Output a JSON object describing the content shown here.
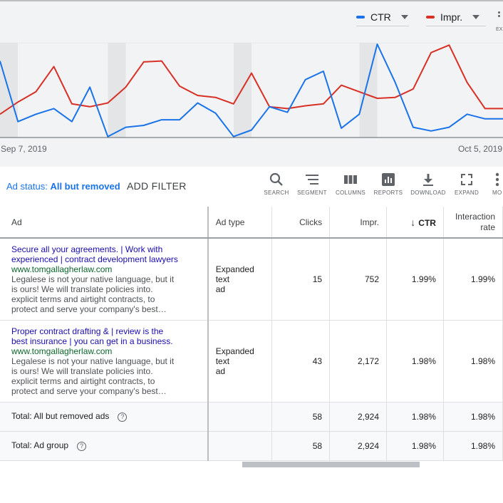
{
  "chart": {
    "legend": [
      {
        "label": "CTR",
        "color": "#1a73e8"
      },
      {
        "label": "Impr.",
        "color": "#d93025"
      }
    ],
    "overflow_label": "EX",
    "start_date": "Sep 7, 2019",
    "end_date": "Oct 5, 2019"
  },
  "chart_data": {
    "type": "line",
    "x": [
      "Sep 7, 2019",
      "Sep 8",
      "Sep 9",
      "Sep 10",
      "Sep 11",
      "Sep 12",
      "Sep 13",
      "Sep 14",
      "Sep 15",
      "Sep 16",
      "Sep 17",
      "Sep 18",
      "Sep 19",
      "Sep 20",
      "Sep 21",
      "Sep 22",
      "Sep 23",
      "Sep 24",
      "Sep 25",
      "Sep 26",
      "Sep 27",
      "Sep 28",
      "Sep 29",
      "Sep 30",
      "Oct 1",
      "Oct 2",
      "Oct 3",
      "Oct 4",
      "Oct 5, 2019"
    ],
    "series": [
      {
        "name": "CTR",
        "color": "#1a73e8",
        "values": [
          0.82,
          0.17,
          0.25,
          0.31,
          0.17,
          0.54,
          0.01,
          0.11,
          0.13,
          0.19,
          0.19,
          0.37,
          0.26,
          0.01,
          0.08,
          0.33,
          0.27,
          0.62,
          0.71,
          0.1,
          0.25,
          1.0,
          0.59,
          0.11,
          0.07,
          0.11,
          0.25,
          0.2,
          0.2
        ]
      },
      {
        "name": "Impr.",
        "color": "#d93025",
        "values": [
          0.25,
          0.38,
          0.49,
          0.76,
          0.36,
          0.33,
          0.37,
          0.54,
          0.81,
          0.82,
          0.55,
          0.45,
          0.43,
          0.36,
          0.69,
          0.33,
          0.31,
          0.34,
          0.36,
          0.56,
          0.49,
          0.42,
          0.43,
          0.52,
          0.91,
          0.99,
          0.59,
          0.31,
          0.31
        ]
      }
    ],
    "xlabel": "",
    "ylabel": "",
    "grid": true
  },
  "toolbar": {
    "status_prefix": "Ad status:",
    "status_value": "All but removed",
    "add_filter": "ADD FILTER",
    "tools": [
      {
        "icon": "search-icon",
        "label": "SEARCH"
      },
      {
        "icon": "segment-icon",
        "label": "SEGMENT"
      },
      {
        "icon": "columns-icon",
        "label": "COLUMNS"
      },
      {
        "icon": "reports-icon",
        "label": "REPORTS"
      },
      {
        "icon": "download-icon",
        "label": "DOWNLOAD"
      },
      {
        "icon": "expand-icon",
        "label": "EXPAND"
      },
      {
        "icon": "more-icon",
        "label": "MO"
      }
    ]
  },
  "table": {
    "headers": {
      "ad": "Ad",
      "ad_type": "Ad type",
      "clicks": "Clicks",
      "impr": "Impr.",
      "ctr": "CTR",
      "interaction_rate_1": "Interaction",
      "interaction_rate_2": "rate"
    },
    "rows": [
      {
        "headline_1": "Secure all your agreements. | Work with",
        "headline_2": "experienced | contract development lawyers",
        "url": "www.tomgallagherlaw.com",
        "desc_1": "Legalese is not your native language, but it",
        "desc_2": "is ours! We will translate policies into.",
        "desc_3": "explicit terms and airtight contracts, to",
        "desc_4": "protect and serve your company's best…",
        "ad_type_1": "Expanded text",
        "ad_type_2": "ad",
        "clicks": "15",
        "impr": "752",
        "ctr": "1.99%",
        "interaction_rate": "1.99%"
      },
      {
        "headline_1": "Proper contract drafting & | review is the",
        "headline_2": "best insurance | you can get in a business.",
        "url": "www.tomgallagherlaw.com",
        "desc_1": "Legalese is not your native language, but it",
        "desc_2": "is ours! We will translate policies into.",
        "desc_3": "explicit terms and airtight contracts, to",
        "desc_4": "protect and serve your company's best…",
        "ad_type_1": "Expanded text",
        "ad_type_2": "ad",
        "clicks": "43",
        "impr": "2,172",
        "ctr": "1.98%",
        "interaction_rate": "1.98%"
      }
    ],
    "totals": [
      {
        "label": "Total: All but removed ads",
        "clicks": "58",
        "impr": "2,924",
        "ctr": "1.98%",
        "interaction_rate": "1.98%"
      },
      {
        "label": "Total: Ad group",
        "clicks": "58",
        "impr": "2,924",
        "ctr": "1.98%",
        "interaction_rate": "1.98%"
      }
    ]
  }
}
